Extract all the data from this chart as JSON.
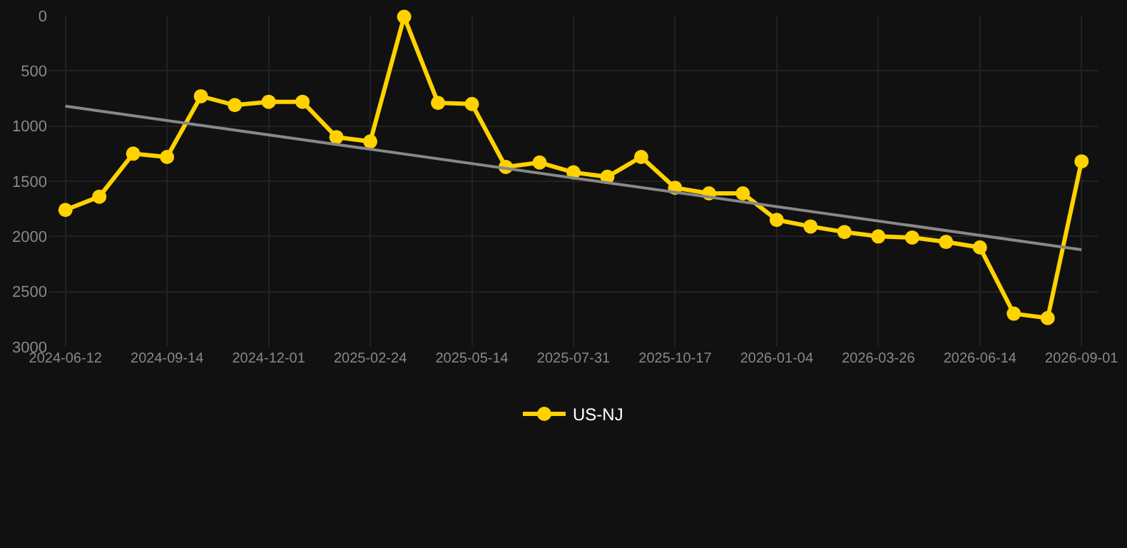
{
  "chart_data": {
    "type": "line",
    "categories": [
      "2024-06-12",
      null,
      null,
      "2024-09-14",
      null,
      null,
      "2024-12-01",
      null,
      null,
      "2025-02-24",
      null,
      null,
      "2025-05-14",
      null,
      null,
      "2025-07-31",
      null,
      null,
      "2025-10-17",
      null,
      null,
      "2026-01-04",
      null,
      null,
      "2026-03-26",
      null,
      null,
      "2026-06-14",
      null,
      null,
      "2026-09-01"
    ],
    "series": [
      {
        "name": "US-NJ",
        "color": "#ffd200",
        "marker": "circle",
        "values": [
          1760,
          1640,
          1250,
          1280,
          730,
          810,
          780,
          780,
          1100,
          1140,
          10,
          790,
          800,
          1370,
          1330,
          1420,
          1460,
          1280,
          1560,
          1610,
          1610,
          1850,
          1910,
          1960,
          2000,
          2010,
          2050,
          2100,
          2700,
          2740,
          1320
        ]
      },
      {
        "type": "line",
        "color": "#888888",
        "marker": "none",
        "values": [
          820,
          null,
          null,
          null,
          null,
          null,
          null,
          null,
          null,
          null,
          null,
          null,
          null,
          null,
          null,
          null,
          null,
          null,
          null,
          null,
          null,
          null,
          null,
          null,
          null,
          null,
          null,
          null,
          null,
          null,
          2120
        ]
      }
    ],
    "ylim": [
      3000,
      0
    ],
    "yticks": [
      0,
      500,
      1000,
      1500,
      2000,
      2500,
      3000
    ],
    "grid": true,
    "legend": "bottom"
  }
}
